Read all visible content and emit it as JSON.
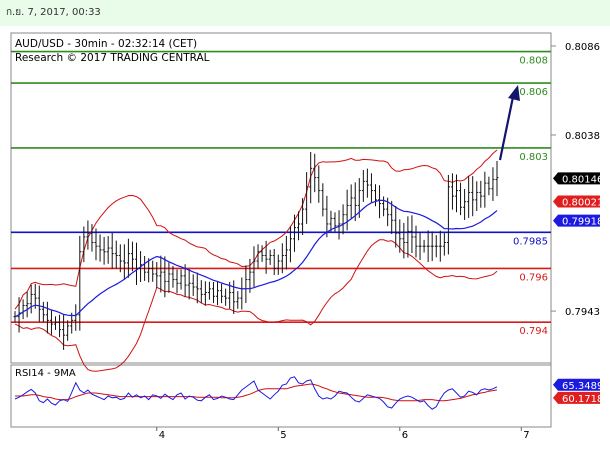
{
  "timestamp": "ก.ย. 7, 2017, 00:33",
  "chart_data": [
    {
      "type": "candlestick",
      "title": "AUD/USD - 30min - 02:32:14 (CET)",
      "subtitle": "Research © 2017 TRADING CENTRAL",
      "ylim": [
        0.7915,
        0.8093
      ],
      "y_ticks": [
        "0.8086",
        "0.8038",
        "0.7943"
      ],
      "y_tick_values": [
        0.8086,
        0.8038,
        0.7943
      ],
      "x_ticks": [
        "4",
        "5",
        "6",
        "7"
      ],
      "x_tick_index": [
        35,
        65,
        95,
        125
      ],
      "levels": [
        {
          "label": "0.808",
          "value": 0.8083,
          "color": "#2e8b1e"
        },
        {
          "label": "0.806",
          "value": 0.8066,
          "color": "#2e8b1e"
        },
        {
          "label": "0.803",
          "value": 0.8031,
          "color": "#2e8b1e"
        },
        {
          "label": "0.7985",
          "value": 0.79855,
          "color": "#1212c8"
        },
        {
          "label": "0.796",
          "value": 0.7966,
          "color": "#d81c1c"
        },
        {
          "label": "0.794",
          "value": 0.7937,
          "color": "#d81c1c"
        }
      ],
      "price_tags": [
        {
          "label": "0.80146",
          "value": 0.80146,
          "bg": "#000000",
          "fg": "#ffffff"
        },
        {
          "label": "0.80021",
          "value": 0.80021,
          "bg": "#e01e1e",
          "fg": "#ffffff"
        },
        {
          "label": "0.79918",
          "value": 0.79918,
          "bg": "#1a1ae0",
          "fg": "#ffffff"
        }
      ],
      "close": [
        0.794,
        0.7942,
        0.7946,
        0.7947,
        0.7952,
        0.795,
        0.7944,
        0.7941,
        0.7938,
        0.7936,
        0.7937,
        0.7933,
        0.793,
        0.7935,
        0.7938,
        0.7941,
        0.7975,
        0.7983,
        0.7985,
        0.798,
        0.7978,
        0.7976,
        0.7975,
        0.7977,
        0.7974,
        0.7973,
        0.797,
        0.7969,
        0.7974,
        0.7971,
        0.7966,
        0.7968,
        0.7964,
        0.7966,
        0.7963,
        0.7962,
        0.7964,
        0.7959,
        0.7963,
        0.796,
        0.7958,
        0.7962,
        0.7957,
        0.7958,
        0.7956,
        0.7955,
        0.7952,
        0.7953,
        0.7955,
        0.7951,
        0.7954,
        0.7951,
        0.795,
        0.7953,
        0.7948,
        0.795,
        0.7955,
        0.796,
        0.7964,
        0.797,
        0.7975,
        0.7973,
        0.7971,
        0.7973,
        0.7966,
        0.797,
        0.7973,
        0.7976,
        0.7982,
        0.7988,
        0.799,
        0.7998,
        0.801,
        0.802,
        0.8015,
        0.8008,
        0.7998,
        0.799,
        0.7993,
        0.7989,
        0.799,
        0.7995,
        0.8,
        0.8004,
        0.8,
        0.8008,
        0.8013,
        0.8011,
        0.8008,
        0.8003,
        0.8001,
        0.7998,
        0.7995,
        0.7992,
        0.7985,
        0.7982,
        0.798,
        0.7986,
        0.7983,
        0.7978,
        0.7978,
        0.7978,
        0.7978,
        0.7978,
        0.7978,
        0.7978,
        0.798,
        0.801,
        0.8005,
        0.8008,
        0.7999,
        0.8002,
        0.8007,
        0.8003,
        0.8007,
        0.8005,
        0.8012,
        0.8009,
        0.8014,
        0.8015
      ],
      "series": [],
      "subchart": {
        "title": "RSI14 - 9MA",
        "tags": [
          {
            "label": "65.3489",
            "value": 65.3489,
            "bg": "#1a1ae0",
            "fg": "#ffffff"
          },
          {
            "label": "60.1718",
            "value": 60.1718,
            "bg": "#e01e1e",
            "fg": "#ffffff"
          }
        ],
        "rsi": [
          45,
          48,
          52,
          57,
          61,
          55,
          42,
          39,
          45,
          38,
          35,
          42,
          44,
          41,
          56,
          72,
          60,
          55,
          60,
          53,
          50,
          47,
          44,
          50,
          47,
          48,
          44,
          46,
          55,
          48,
          52,
          47,
          50,
          44,
          52,
          50,
          46,
          53,
          48,
          44,
          52,
          55,
          45,
          50,
          48,
          43,
          42,
          48,
          52,
          44,
          46,
          50,
          48,
          45,
          44,
          52,
          60,
          65,
          70,
          75,
          60,
          55,
          50,
          45,
          52,
          58,
          68,
          70,
          80,
          82,
          72,
          70,
          75,
          77,
          62,
          50,
          45,
          47,
          45,
          50,
          58,
          56,
          55,
          48,
          42,
          40,
          46,
          52,
          50,
          48,
          46,
          40,
          32,
          30,
          38,
          45,
          48,
          50,
          48,
          44,
          40,
          42,
          34,
          28,
          32,
          45,
          55,
          60,
          62,
          55,
          48,
          50,
          58,
          56,
          52,
          60,
          62,
          60,
          62,
          65.35
        ],
        "ma": [
          50,
          50,
          50,
          51,
          52,
          52,
          51,
          49,
          48,
          47,
          45,
          44,
          44,
          44,
          46,
          49,
          51,
          53,
          55,
          55,
          55,
          54,
          53,
          52,
          51,
          50,
          49,
          49,
          49,
          49,
          49,
          49,
          49,
          49,
          49,
          49,
          49,
          49,
          49,
          49,
          49,
          49,
          49,
          49,
          49,
          48,
          48,
          48,
          48,
          48,
          48,
          47,
          47,
          47,
          47,
          48,
          49,
          51,
          53,
          56,
          59,
          61,
          62,
          62,
          62,
          62,
          62,
          62,
          64,
          66,
          67,
          68,
          69,
          70,
          69,
          67,
          64,
          62,
          59,
          57,
          55,
          54,
          53,
          52,
          51,
          50,
          49,
          48,
          48,
          48,
          48,
          47,
          46,
          44,
          43,
          42,
          42,
          42,
          42,
          42,
          43,
          44,
          44,
          44,
          43,
          42,
          42,
          43,
          44,
          45,
          46,
          48,
          50,
          52,
          53,
          55,
          56,
          58,
          59,
          60.17
        ],
        "ylim": [
          0,
          100
        ]
      }
    }
  ]
}
